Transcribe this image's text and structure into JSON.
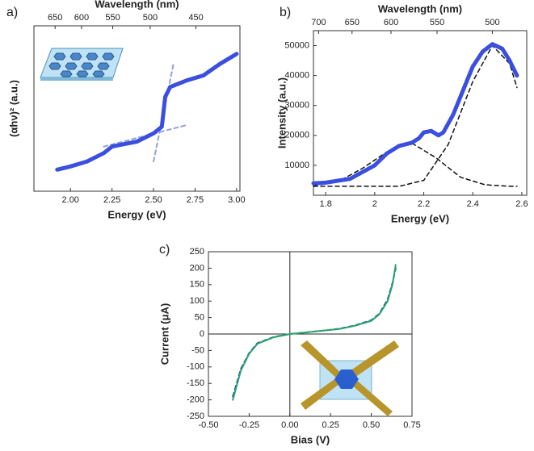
{
  "chart_data": [
    {
      "type": "line",
      "panel_label": "a)",
      "xlabel": "Energy (eV)",
      "ylabel": "(αhν)² (a.u.)",
      "x2label": "Wavelength (nm)",
      "xlim": [
        1.78,
        3.02
      ],
      "ylim": [
        0,
        10
      ],
      "xticks": [
        {
          "value": 2.0,
          "label": "2.00"
        },
        {
          "value": 2.25,
          "label": "2.25"
        },
        {
          "value": 2.5,
          "label": "2.50"
        },
        {
          "value": 2.75,
          "label": "2.75"
        },
        {
          "value": 3.0,
          "label": "3.00"
        }
      ],
      "x2ticks": [
        650,
        600,
        550,
        500,
        450
      ],
      "series": [
        {
          "color": "#3a4fe0",
          "width": 5,
          "x": [
            1.92,
            2.0,
            2.1,
            2.2,
            2.25,
            2.3,
            2.4,
            2.5,
            2.55,
            2.57,
            2.6,
            2.7,
            2.8,
            2.9,
            3.0
          ],
          "values": [
            1.3,
            1.5,
            1.8,
            2.3,
            2.7,
            2.8,
            3.0,
            3.5,
            3.9,
            5.7,
            6.3,
            6.7,
            7.0,
            7.7,
            8.3
          ]
        },
        {
          "color": "#8fa3d8",
          "width": 2,
          "dash": true,
          "x": [
            2.2,
            2.7
          ],
          "values": [
            2.7,
            4.0
          ]
        },
        {
          "color": "#8fa3d8",
          "width": 2,
          "dash": true,
          "x": [
            2.5,
            2.62
          ],
          "values": [
            1.8,
            7.7
          ]
        }
      ]
    },
    {
      "type": "line",
      "panel_label": "b)",
      "xlabel": "Energy (eV)",
      "ylabel": "Intensity (a.u.)",
      "x2label": "Wavelength (nm)",
      "xlim": [
        1.75,
        2.62
      ],
      "ylim": [
        0,
        55000
      ],
      "xticks": [
        1.8,
        2.0,
        2.2,
        2.4,
        2.6
      ],
      "yticks": [
        10000,
        20000,
        30000,
        40000,
        50000
      ],
      "x2ticks": [
        700,
        650,
        600,
        550,
        500
      ],
      "series": [
        {
          "color": "#3a4fe0",
          "width": 5,
          "x": [
            1.75,
            1.8,
            1.9,
            2.0,
            2.05,
            2.1,
            2.15,
            2.18,
            2.2,
            2.23,
            2.26,
            2.28,
            2.32,
            2.36,
            2.4,
            2.44,
            2.48,
            2.52,
            2.55,
            2.58
          ],
          "values": [
            4000,
            4200,
            5500,
            10000,
            14000,
            16500,
            17500,
            19000,
            21000,
            21500,
            20000,
            21000,
            27000,
            35000,
            43000,
            48000,
            50500,
            49000,
            45000,
            40000
          ]
        },
        {
          "color": "#111111",
          "width": 1.5,
          "dash": true,
          "x": [
            1.75,
            1.85,
            1.95,
            2.05,
            2.15,
            2.25,
            2.35,
            2.45,
            2.55,
            2.58
          ],
          "values": [
            3200,
            4500,
            9000,
            14500,
            17500,
            12500,
            6000,
            3500,
            3000,
            3000
          ]
        },
        {
          "color": "#111111",
          "width": 1.5,
          "dash": true,
          "x": [
            1.75,
            2.1,
            2.2,
            2.3,
            2.4,
            2.48,
            2.55,
            2.58
          ],
          "values": [
            3000,
            3000,
            5000,
            17000,
            38000,
            50000,
            44000,
            36000
          ]
        }
      ]
    },
    {
      "type": "line",
      "panel_label": "c)",
      "xlabel": "Bias (V)",
      "ylabel": "Current (μA)",
      "zero_lines": true,
      "xlim": [
        -0.5,
        0.75
      ],
      "ylim": [
        -250,
        250
      ],
      "xticks": [
        {
          "value": -0.5,
          "label": "-0.50"
        },
        {
          "value": -0.25,
          "label": "-0.25"
        },
        {
          "value": 0,
          "label": "0.00"
        },
        {
          "value": 0.25,
          "label": "0.25"
        },
        {
          "value": 0.5,
          "label": "0.50"
        },
        {
          "value": 0.75,
          "label": "0.75"
        }
      ],
      "yticks": [
        -250,
        -200,
        -150,
        -100,
        -50,
        0,
        50,
        100,
        150,
        200,
        250
      ],
      "series": [
        {
          "color": "#2aa36a",
          "width": 2,
          "x": [
            -0.35,
            -0.3,
            -0.25,
            -0.2,
            -0.1,
            0,
            0.1,
            0.2,
            0.3,
            0.4,
            0.5,
            0.55,
            0.6,
            0.63,
            0.65
          ],
          "values": [
            -200,
            -110,
            -60,
            -30,
            -10,
            0,
            5,
            10,
            15,
            25,
            40,
            60,
            100,
            150,
            210
          ]
        },
        {
          "color": "#2050c0",
          "width": 2,
          "dash": true,
          "x": [
            -0.35,
            -0.3,
            -0.25,
            -0.2,
            -0.1,
            0,
            0.1,
            0.2,
            0.3,
            0.4,
            0.5,
            0.55,
            0.6,
            0.63,
            0.65
          ],
          "values": [
            -190,
            -105,
            -58,
            -28,
            -9,
            0,
            5,
            10,
            16,
            26,
            42,
            62,
            105,
            155,
            200
          ]
        }
      ]
    }
  ]
}
